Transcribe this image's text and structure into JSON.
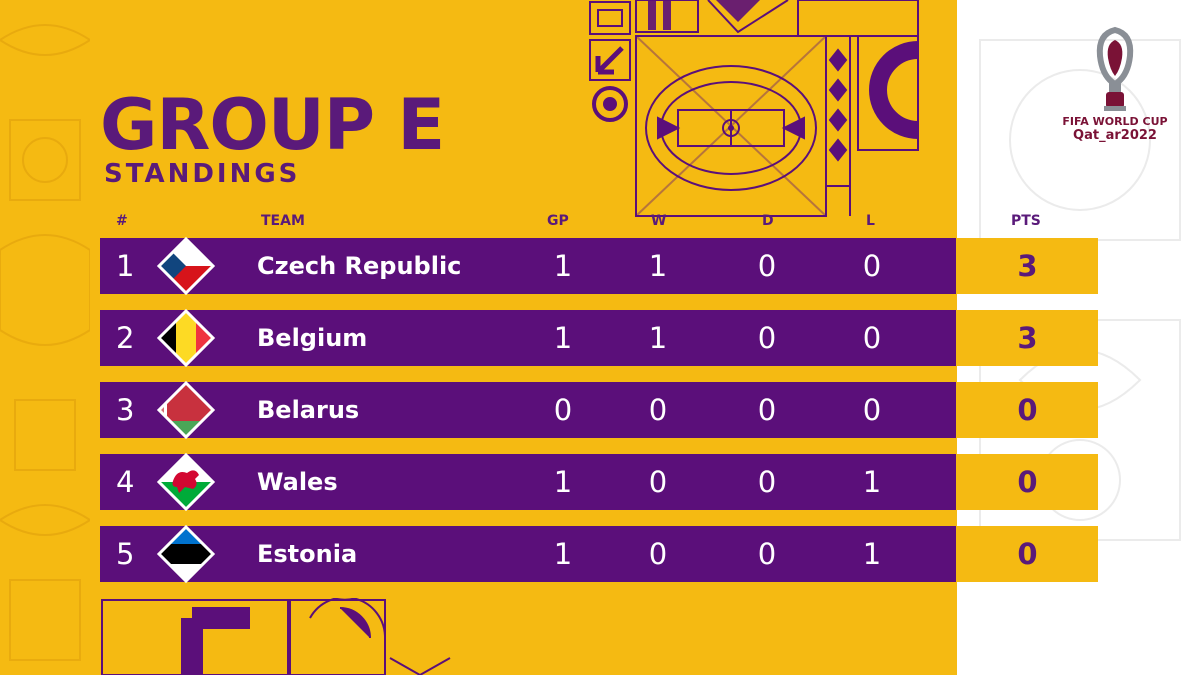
{
  "header": {
    "title": "GROUP E",
    "subtitle": "STANDINGS"
  },
  "columns": {
    "rank": "#",
    "team": "TEAM",
    "gp": "GP",
    "w": "W",
    "d": "D",
    "l": "L",
    "pts": "PTS"
  },
  "standings": [
    {
      "rank": "1",
      "team": "Czech Republic",
      "flag": "czech-republic-flag-icon",
      "gp": "1",
      "w": "1",
      "d": "0",
      "l": "0",
      "pts": "3"
    },
    {
      "rank": "2",
      "team": "Belgium",
      "flag": "belgium-flag-icon",
      "gp": "1",
      "w": "1",
      "d": "0",
      "l": "0",
      "pts": "3"
    },
    {
      "rank": "3",
      "team": "Belarus",
      "flag": "belarus-flag-icon",
      "gp": "0",
      "w": "0",
      "d": "0",
      "l": "0",
      "pts": "0"
    },
    {
      "rank": "4",
      "team": "Wales",
      "flag": "wales-flag-icon",
      "gp": "1",
      "w": "0",
      "d": "0",
      "l": "1",
      "pts": "0"
    },
    {
      "rank": "5",
      "team": "Estonia",
      "flag": "estonia-flag-icon",
      "gp": "1",
      "w": "0",
      "d": "0",
      "l": "1",
      "pts": "0"
    }
  ],
  "logo": {
    "line1": "FIFA WORLD CUP",
    "line2": "Qat_ar2022"
  },
  "colors": {
    "gold": "#f5ba12",
    "purple": "#5b0f7a",
    "maroon": "#7a1236",
    "white": "#ffffff"
  }
}
